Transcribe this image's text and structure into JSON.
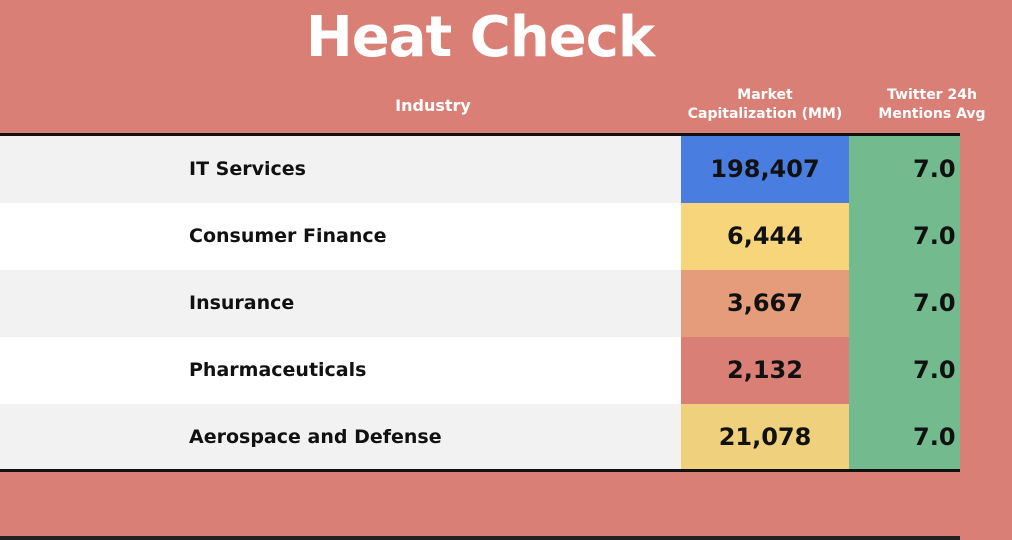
{
  "title": "Heat Check",
  "columns": {
    "industry": "Industry",
    "market_cap_line1": "Market",
    "market_cap_line2": "Capitalization (MM)",
    "twitter_line1": "Twitter 24h",
    "twitter_line2": "Mentions Avg"
  },
  "colors": {
    "background": "#d97f76",
    "row_light": "#f2f2f2",
    "row_white": "#ffffff",
    "twitter_cell": "#73bb8e"
  },
  "chart_data": {
    "type": "table",
    "title": "Heat Check",
    "rows": [
      {
        "industry": "IT Services",
        "market_cap": "198,407",
        "market_cap_value": 198407,
        "twitter": "7.0",
        "twitter_value": 7.0,
        "mcap_color": "#4a7de0",
        "row_bg": "#f2f2f2"
      },
      {
        "industry": "Consumer Finance",
        "market_cap": "6,444",
        "market_cap_value": 6444,
        "twitter": "7.0",
        "twitter_value": 7.0,
        "mcap_color": "#f7d57a",
        "row_bg": "#ffffff"
      },
      {
        "industry": "Insurance",
        "market_cap": "3,667",
        "market_cap_value": 3667,
        "twitter": "7.0",
        "twitter_value": 7.0,
        "mcap_color": "#e49c7a",
        "row_bg": "#f2f2f2"
      },
      {
        "industry": "Pharmaceuticals",
        "market_cap": "2,132",
        "market_cap_value": 2132,
        "twitter": "7.0",
        "twitter_value": 7.0,
        "mcap_color": "#da7f76",
        "row_bg": "#ffffff"
      },
      {
        "industry": "Aerospace and Defense",
        "market_cap": "21,078",
        "market_cap_value": 21078,
        "twitter": "7.0",
        "twitter_value": 7.0,
        "mcap_color": "#efd07c",
        "row_bg": "#f2f2f2"
      }
    ]
  }
}
